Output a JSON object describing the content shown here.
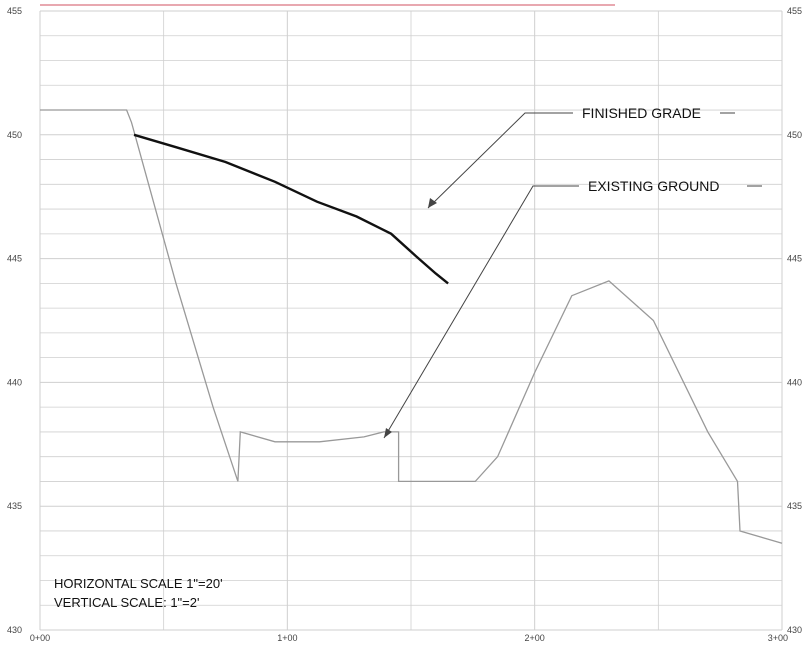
{
  "chart_data": {
    "type": "line",
    "title": "",
    "xlabel": "",
    "ylabel": "",
    "xlim": [
      0,
      300
    ],
    "ylim": [
      430,
      455
    ],
    "grid": true,
    "x_ticks": [
      {
        "value": 0,
        "label": "0+00"
      },
      {
        "value": 100,
        "label": "1+00"
      },
      {
        "value": 200,
        "label": "2+00"
      },
      {
        "value": 300,
        "label": "3+00"
      }
    ],
    "y_ticks_left": [
      {
        "value": 430,
        "label": "430"
      },
      {
        "value": 435,
        "label": "435"
      },
      {
        "value": 440,
        "label": "440"
      },
      {
        "value": 445,
        "label": "445"
      },
      {
        "value": 450,
        "label": "450"
      },
      {
        "value": 455,
        "label": "455"
      }
    ],
    "y_ticks_right": [
      {
        "value": 430,
        "label": "430"
      },
      {
        "value": 435,
        "label": "435"
      },
      {
        "value": 440,
        "label": "440"
      },
      {
        "value": 445,
        "label": "445"
      },
      {
        "value": 450,
        "label": "450"
      },
      {
        "value": 455,
        "label": "455"
      }
    ],
    "series": [
      {
        "key": "finished",
        "color": "#111111",
        "points": [
          [
            38,
            450
          ],
          [
            55,
            449.5
          ],
          [
            75,
            448.9
          ],
          [
            95,
            448.1
          ],
          [
            112,
            447.3
          ],
          [
            128,
            446.7
          ],
          [
            142,
            446
          ],
          [
            152,
            445.1
          ],
          [
            160,
            444.4
          ],
          [
            165,
            444
          ]
        ]
      },
      {
        "key": "existing",
        "color": "#999999",
        "points": [
          [
            0,
            451
          ],
          [
            35,
            451
          ],
          [
            37,
            450.5
          ],
          [
            55,
            444
          ],
          [
            70,
            439
          ],
          [
            80,
            436
          ],
          [
            81,
            438
          ],
          [
            95,
            437.6
          ],
          [
            113,
            437.6
          ],
          [
            131,
            437.8
          ],
          [
            139,
            438
          ],
          [
            145,
            438
          ],
          [
            145,
            436
          ],
          [
            160,
            436
          ],
          [
            165,
            436
          ],
          [
            176,
            436
          ],
          [
            185,
            437
          ],
          [
            200,
            440.4
          ],
          [
            215,
            443.5
          ],
          [
            230,
            444.1
          ],
          [
            248,
            442.5
          ],
          [
            270,
            438
          ],
          [
            282,
            436
          ],
          [
            283,
            434
          ],
          [
            300,
            433.5
          ]
        ]
      }
    ],
    "annotations": [
      {
        "key": "finished_grade",
        "text": "FINISHED GRADE"
      },
      {
        "key": "existing_ground",
        "text": "EXISTING GROUND"
      }
    ],
    "scale_notes": {
      "horizontal": "HORIZONTAL SCALE 1\"=20'",
      "vertical": "VERTICAL SCALE: 1\"=2'"
    },
    "colors": {
      "grid": "#cfcfcf",
      "header_line": "#e8a8b0",
      "finished_grade": "#111111",
      "existing_ground": "#999999",
      "leader": "#444444"
    }
  }
}
